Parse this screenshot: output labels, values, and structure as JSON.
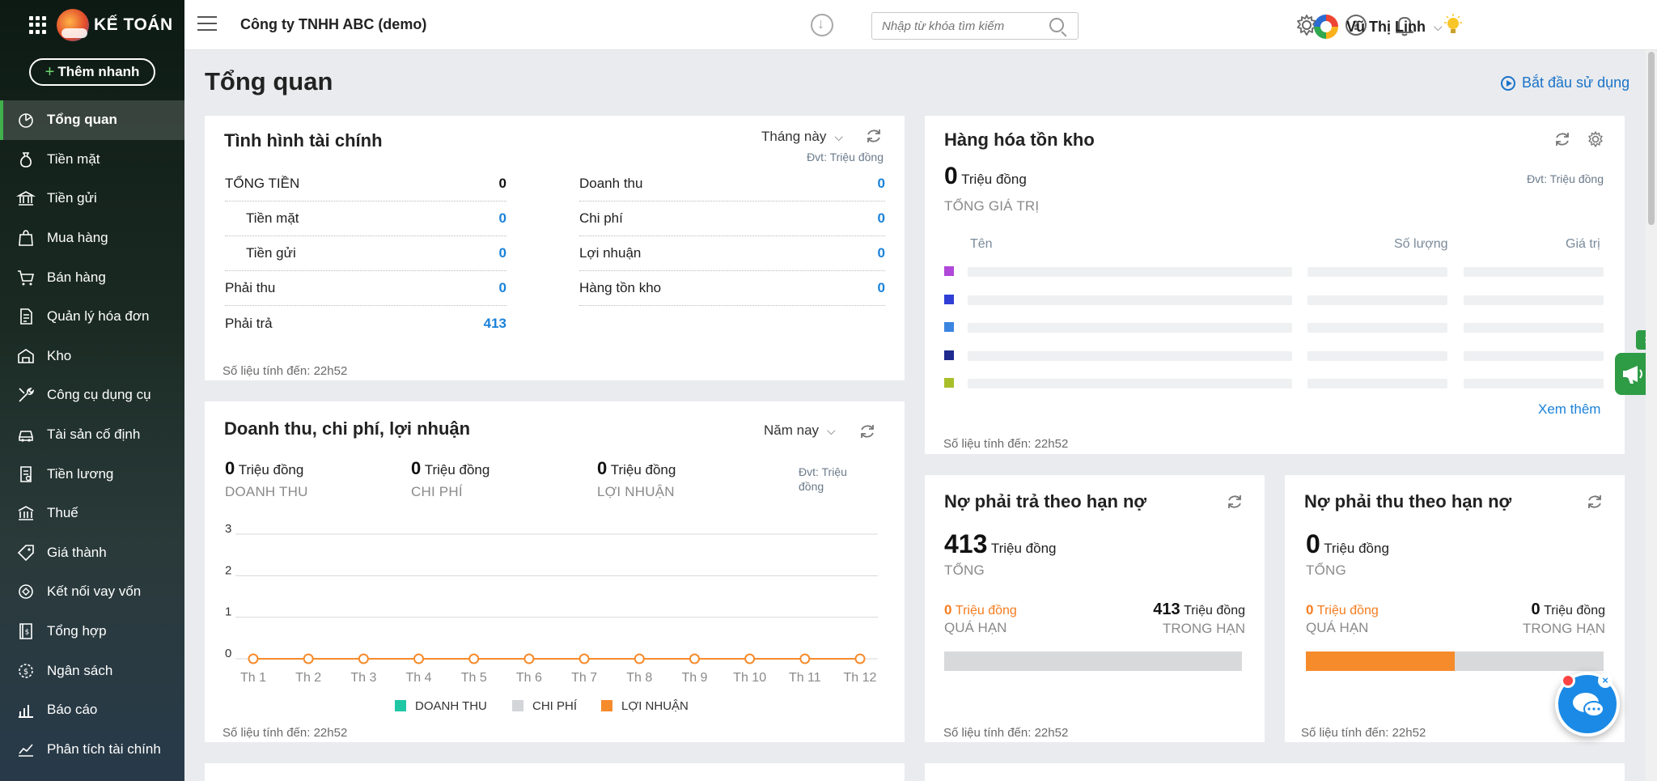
{
  "app": {
    "logo_text": "KẾ TOÁN",
    "quick_add": "Thêm nhanh"
  },
  "sidebar": {
    "items": [
      {
        "label": "Tổng quan",
        "icon": "dashboard-icon"
      },
      {
        "label": "Tiền mặt",
        "icon": "money-bag-icon"
      },
      {
        "label": "Tiền gửi",
        "icon": "bank-icon"
      },
      {
        "label": "Mua hàng",
        "icon": "shopping-bag-icon"
      },
      {
        "label": "Bán hàng",
        "icon": "cart-icon"
      },
      {
        "label": "Quản lý hóa đơn",
        "icon": "invoice-icon"
      },
      {
        "label": "Kho",
        "icon": "warehouse-icon"
      },
      {
        "label": "Công cụ dụng cụ",
        "icon": "tools-icon"
      },
      {
        "label": "Tài sản cố định",
        "icon": "car-icon"
      },
      {
        "label": "Tiền lương",
        "icon": "payroll-icon"
      },
      {
        "label": "Thuế",
        "icon": "tax-icon"
      },
      {
        "label": "Giá thành",
        "icon": "price-tag-icon"
      },
      {
        "label": "Kết nối vay vốn",
        "icon": "loan-icon"
      },
      {
        "label": "Tổng hợp",
        "icon": "ledger-icon"
      },
      {
        "label": "Ngân sách",
        "icon": "budget-icon"
      },
      {
        "label": "Báo cáo",
        "icon": "bar-report-icon"
      },
      {
        "label": "Phân tích tài chính",
        "icon": "analysis-icon"
      }
    ]
  },
  "header": {
    "company": "Công ty TNHH ABC (demo)",
    "search_placeholder": "Nhập từ khóa tìm kiếm",
    "user_name": "Vũ Thị Linh"
  },
  "page": {
    "title": "Tổng quan",
    "start_link": "Bắt đầu sử dụng"
  },
  "finance": {
    "title": "Tình hình tài chính",
    "period": "Tháng này",
    "unit": "Đvt: Triệu đồng",
    "left": [
      {
        "label": "TỔNG TIỀN",
        "value": "0"
      },
      {
        "label": "Tiền mặt",
        "value": "0"
      },
      {
        "label": "Tiền gửi",
        "value": "0"
      },
      {
        "label": "Phải thu",
        "value": "0"
      },
      {
        "label": "Phải trả",
        "value": "413"
      }
    ],
    "right": [
      {
        "label": "Doanh thu",
        "value": "0"
      },
      {
        "label": "Chi phí",
        "value": "0"
      },
      {
        "label": "Lợi nhuận",
        "value": "0"
      },
      {
        "label": "Hàng tồn kho",
        "value": "0"
      }
    ],
    "footnote": "Số liệu tính đến: 22h52"
  },
  "inventory": {
    "title": "Hàng hóa tồn kho",
    "total_value": "0",
    "total_unit": "Triệu đồng",
    "total_caption": "TỔNG GIÁ TRỊ",
    "unit": "Đvt: Triệu đồng",
    "col_name": "Tên",
    "col_qty": "Số lượng",
    "col_value": "Giá trị",
    "swatches": [
      "#b048d9",
      "#2f3fd6",
      "#3a85e0",
      "#1f2a8f",
      "#a8bf2a"
    ],
    "more": "Xem thêm",
    "footnote": "Số liệu tính đến: 22h52"
  },
  "revenue": {
    "title": "Doanh thu, chi phí, lợi nhuận",
    "period": "Năm nay",
    "unit": "Đvt: Triệu đồng",
    "stats": [
      {
        "value": "0",
        "unit": "Triệu đồng",
        "caption": "DOANH THU"
      },
      {
        "value": "0",
        "unit": "Triệu đồng",
        "caption": "CHI PHÍ"
      },
      {
        "value": "0",
        "unit": "Triệu đồng",
        "caption": "LỢI NHUẬN"
      }
    ],
    "footnote": "Số liệu tính đến: 22h52"
  },
  "payable": {
    "title": "Nợ phải trả theo hạn nợ",
    "total": "413",
    "total_unit": "Triệu đồng",
    "total_caption": "TỔNG",
    "overdue": "0",
    "overdue_unit": "Triệu đồng",
    "overdue_caption": "QUÁ HẠN",
    "in_term": "413",
    "in_term_unit": "Triệu đồng",
    "in_term_caption": "TRONG HẠN",
    "overdue_ratio": 0,
    "footnote": "Số liệu tính đến: 22h52"
  },
  "receivable": {
    "title": "Nợ phải thu theo hạn nợ",
    "total": "0",
    "total_unit": "Triệu đồng",
    "total_caption": "TỔNG",
    "overdue": "0",
    "overdue_unit": "Triệu đồng",
    "overdue_caption": "QUÁ HẠN",
    "in_term": "0",
    "in_term_unit": "Triệu đồng",
    "in_term_caption": "TRONG HẠN",
    "overdue_ratio": 0.5,
    "footnote": "Số liệu tính đến: 22h52"
  },
  "chart_data": {
    "type": "line",
    "title": "Doanh thu, chi phí, lợi nhuận",
    "categories": [
      "Th 1",
      "Th 2",
      "Th 3",
      "Th 4",
      "Th 5",
      "Th 6",
      "Th 7",
      "Th 8",
      "Th 9",
      "Th 10",
      "Th 11",
      "Th 12"
    ],
    "series": [
      {
        "name": "DOANH THU",
        "color": "#1fc7a4",
        "values": [
          0,
          0,
          0,
          0,
          0,
          0,
          0,
          0,
          0,
          0,
          0,
          0
        ]
      },
      {
        "name": "CHI PHÍ",
        "color": "#d3d5d8",
        "values": [
          0,
          0,
          0,
          0,
          0,
          0,
          0,
          0,
          0,
          0,
          0,
          0
        ]
      },
      {
        "name": "LỢI NHUẬN",
        "color": "#f68b2c",
        "values": [
          0,
          0,
          0,
          0,
          0,
          0,
          0,
          0,
          0,
          0,
          0,
          0
        ]
      }
    ],
    "ylim": [
      0,
      3
    ],
    "yticks": [
      "0",
      "1",
      "2",
      "3"
    ],
    "xlabel": "",
    "ylabel": "",
    "legend": "bottom"
  }
}
